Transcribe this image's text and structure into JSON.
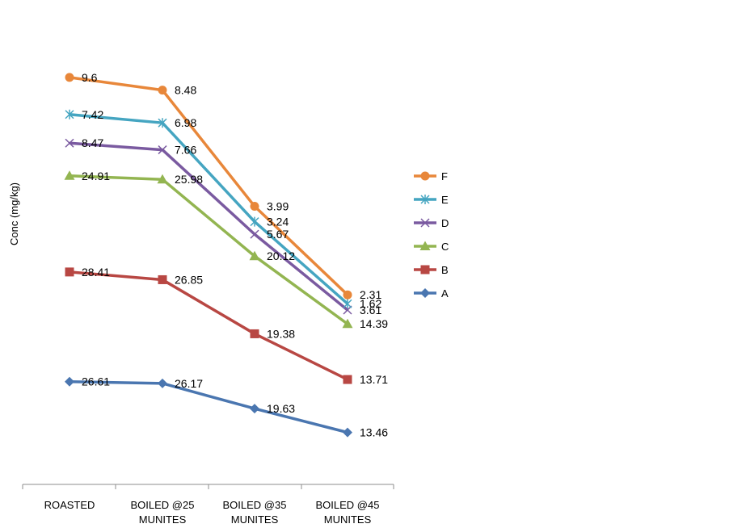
{
  "chart_data": {
    "type": "line",
    "title": "",
    "xlabel": "",
    "ylabel": "Conc (mg/kg)",
    "categories": [
      [
        "ROASTED"
      ],
      [
        "BOILED @25",
        "MUNITES"
      ],
      [
        "BOILED @35",
        "MUNITES"
      ],
      [
        "BOILED @45",
        "MUNITES"
      ]
    ],
    "legend_position": "right",
    "stacked": true,
    "series": [
      {
        "name": "A",
        "values": [
          26.61,
          26.17,
          19.63,
          13.46
        ],
        "color": "#4a76b0",
        "marker": "diamond"
      },
      {
        "name": "B",
        "values": [
          28.41,
          26.85,
          19.38,
          13.71
        ],
        "color": "#b84743",
        "marker": "square"
      },
      {
        "name": "C",
        "values": [
          24.91,
          25.98,
          20.12,
          14.39
        ],
        "color": "#93b551",
        "marker": "triangle"
      },
      {
        "name": "D",
        "values": [
          8.47,
          7.66,
          5.67,
          3.61
        ],
        "color": "#7a5aa0",
        "marker": "x"
      },
      {
        "name": "E",
        "values": [
          7.42,
          6.98,
          3.24,
          1.62
        ],
        "color": "#45a5c1",
        "marker": "star"
      },
      {
        "name": "F",
        "values": [
          9.6,
          8.48,
          3.99,
          2.31
        ],
        "color": "#e8873a",
        "marker": "circle"
      }
    ],
    "cumulative_ymax": 124
  }
}
